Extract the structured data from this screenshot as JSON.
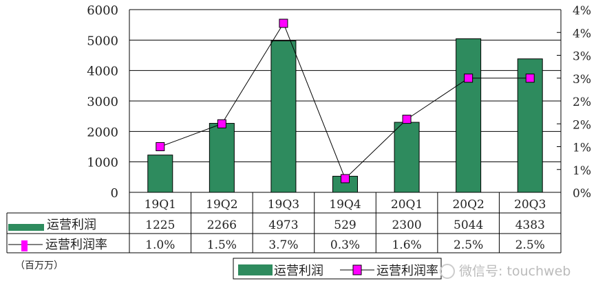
{
  "chart_data": {
    "type": "bar+line",
    "categories": [
      "19Q1",
      "19Q2",
      "19Q3",
      "19Q4",
      "20Q1",
      "20Q2",
      "20Q3"
    ],
    "series": [
      {
        "name": "运营利润",
        "type": "bar",
        "axis": "left",
        "values": [
          1225,
          2266,
          4973,
          529,
          2300,
          5044,
          4383
        ],
        "color": "#2e8b5e"
      },
      {
        "name": "运营利润率",
        "type": "line",
        "axis": "right",
        "values": [
          1.0,
          1.5,
          3.7,
          0.3,
          1.6,
          2.5,
          2.5
        ],
        "labels": [
          "1.0%",
          "1.5%",
          "3.7%",
          "0.3%",
          "1.6%",
          "2.5%",
          "2.5%"
        ],
        "color": "#ff00ff"
      }
    ],
    "y_left": {
      "ylim": [
        0,
        6000
      ],
      "ticks": [
        "0",
        "1000",
        "2000",
        "3000",
        "4000",
        "5000",
        "6000"
      ]
    },
    "y_right": {
      "ylim": [
        0,
        4
      ],
      "ticks": [
        "0%",
        "1%",
        "1%",
        "2%",
        "2%",
        "3%",
        "3%",
        "4%",
        "4%"
      ]
    },
    "unit_note": "（百万万）",
    "legend": [
      "运营利润",
      "运营利润率"
    ],
    "grid": true
  },
  "watermark": "微信号: touchweb"
}
